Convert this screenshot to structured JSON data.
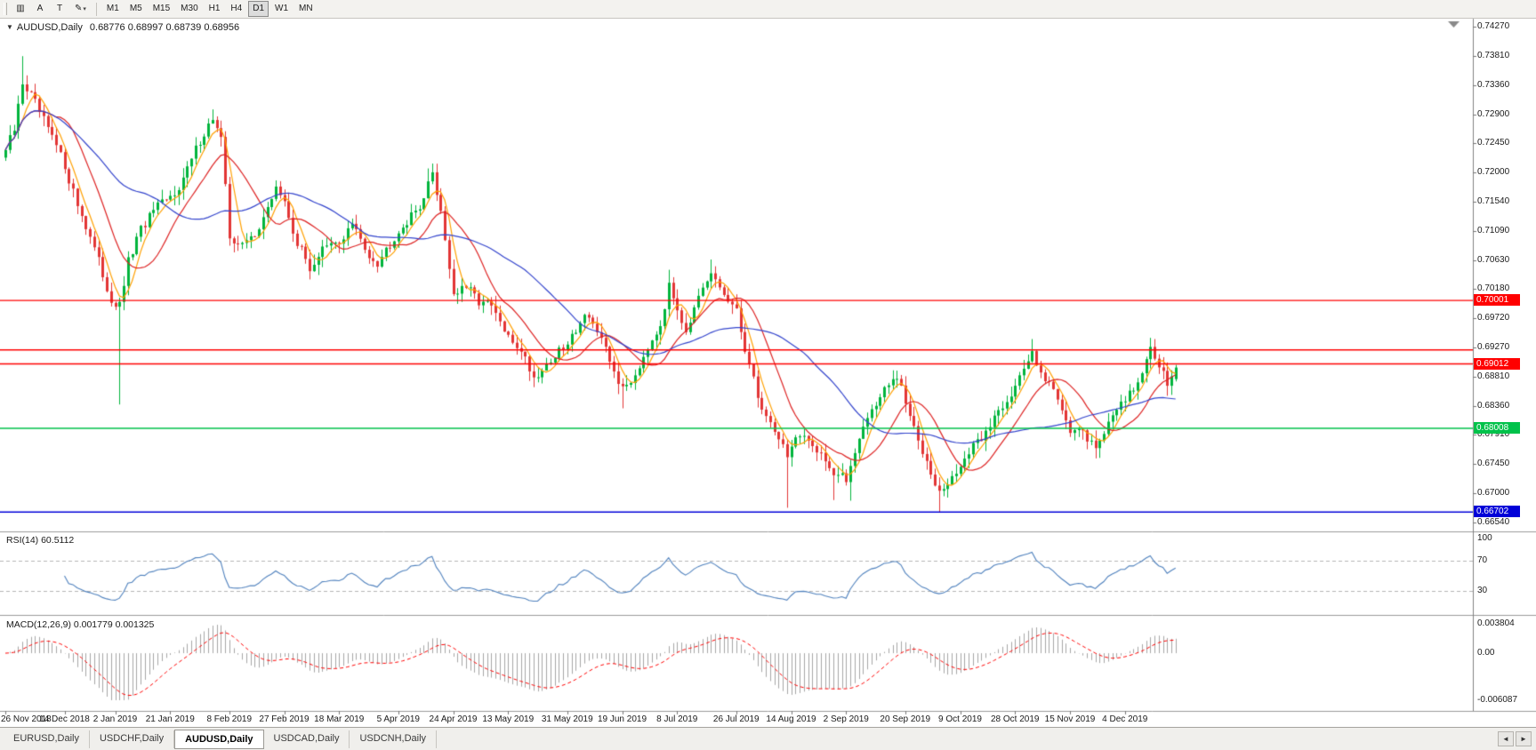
{
  "toolbar": {
    "caret": "▾",
    "buttons": [
      {
        "name": "chart-window-icon-button",
        "glyph": "▥",
        "dropdown": false
      },
      {
        "name": "cursor-tool-button",
        "glyph": "A",
        "dropdown": false
      },
      {
        "name": "text-tool-button",
        "glyph": "T",
        "dropdown": false
      },
      {
        "name": "drawing-tools-button",
        "glyph": "✎",
        "dropdown": true
      }
    ],
    "timeframes": [
      {
        "label": "M1",
        "active": false
      },
      {
        "label": "M5",
        "active": false
      },
      {
        "label": "M15",
        "active": false
      },
      {
        "label": "M30",
        "active": false
      },
      {
        "label": "H1",
        "active": false
      },
      {
        "label": "H4",
        "active": false
      },
      {
        "label": "D1",
        "active": true
      },
      {
        "label": "W1",
        "active": false
      },
      {
        "label": "MN",
        "active": false
      }
    ]
  },
  "header": {
    "collapse_icon": "▼",
    "title": "AUDUSD,Daily",
    "ohlc": "0.68776 0.68997 0.68739 0.68956"
  },
  "panes": {
    "rsi": {
      "label": "RSI(14) 60.5112",
      "period": 14,
      "current": 60.5112,
      "line_color": "#4f81bd",
      "levels": [
        {
          "value": 100,
          "label": "100",
          "dashed": false
        },
        {
          "value": 70,
          "label": "70",
          "dashed": true
        },
        {
          "value": 30,
          "label": "30",
          "dashed": true
        }
      ]
    },
    "macd": {
      "label": "MACD(12,26,9) 0.001779 0.001325",
      "fast": 12,
      "slow": 26,
      "signal": 9,
      "current_macd": 0.001779,
      "current_signal": 0.001325,
      "axis_labels": [
        {
          "value": 0.003804,
          "label": "0.003804"
        },
        {
          "value": 0,
          "label": "0.00"
        },
        {
          "value": -0.006087,
          "label": "-0.006087"
        }
      ]
    }
  },
  "chart_data": {
    "type": "candlestick",
    "symbol": "AUDUSD",
    "timeframe": "Daily",
    "colors": {
      "up": "#00b43c",
      "down": "#e23535",
      "ma_fast": "#ffa000",
      "ma_mid": "#dd2222",
      "ma_slow": "#3344cc",
      "rsi": "#4f81bd",
      "macd_hist": "#a6a6a6",
      "macd_signal": "#ff0000"
    },
    "y_axis": {
      "min": 0.6654,
      "max": 0.7427,
      "ticks": [
        "0.74270",
        "0.73810",
        "0.73360",
        "0.72900",
        "0.72450",
        "0.72000",
        "0.71540",
        "0.71090",
        "0.70630",
        "0.70180",
        "0.69720",
        "0.69270",
        "0.68810",
        "0.68360",
        "0.67910",
        "0.67450",
        "0.67000",
        "0.66540"
      ]
    },
    "x_axis": {
      "ticks": [
        {
          "text": "26 Nov 2018",
          "index": 0
        },
        {
          "text": "14 Dec 2018",
          "index": 14
        },
        {
          "text": "2 Jan 2019",
          "index": 26
        },
        {
          "text": "21 Jan 2019",
          "index": 39
        },
        {
          "text": "8 Feb 2019",
          "index": 53
        },
        {
          "text": "27 Feb 2019",
          "index": 66
        },
        {
          "text": "18 Mar 2019",
          "index": 79
        },
        {
          "text": "5 Apr 2019",
          "index": 93
        },
        {
          "text": "24 Apr 2019",
          "index": 106
        },
        {
          "text": "13 May 2019",
          "index": 119
        },
        {
          "text": "31 May 2019",
          "index": 133
        },
        {
          "text": "19 Jun 2019",
          "index": 146
        },
        {
          "text": "8 Jul 2019",
          "index": 159
        },
        {
          "text": "26 Jul 2019",
          "index": 173
        },
        {
          "text": "14 Aug 2019",
          "index": 186
        },
        {
          "text": "2 Sep 2019",
          "index": 199
        },
        {
          "text": "20 Sep 2019",
          "index": 213
        },
        {
          "text": "9 Oct 2019",
          "index": 226
        },
        {
          "text": "28 Oct 2019",
          "index": 239
        },
        {
          "text": "15 Nov 2019",
          "index": 252
        },
        {
          "text": "4 Dec 2019",
          "index": 265
        }
      ]
    },
    "hlines": [
      {
        "price": 0.70001,
        "label": "0.70001",
        "color": "#ff0000"
      },
      {
        "price": 0.6923,
        "label": "",
        "color": "#ff0000"
      },
      {
        "price": 0.69012,
        "label": "0.69012",
        "color": "#ff0000"
      },
      {
        "price": 0.68008,
        "label": "0.68008",
        "color": "#00c24a"
      },
      {
        "price": 0.66702,
        "label": "0.66702",
        "color": "#0000d8"
      }
    ],
    "moving_averages": [
      {
        "period": 5,
        "color": "#ffa000"
      },
      {
        "period": 13,
        "color": "#dd2222"
      },
      {
        "period": 34,
        "color": "#3344cc"
      }
    ],
    "candles": {
      "count": 278,
      "last_ohlc": {
        "open": 0.68776,
        "high": 0.68997,
        "low": 0.68739,
        "close": 0.68956
      },
      "close_anchors": [
        [
          0,
          0.7235
        ],
        [
          2,
          0.7265
        ],
        [
          4,
          0.734
        ],
        [
          6,
          0.732
        ],
        [
          9,
          0.728
        ],
        [
          12,
          0.724
        ],
        [
          14,
          0.721
        ],
        [
          17,
          0.715
        ],
        [
          20,
          0.71
        ],
        [
          23,
          0.704
        ],
        [
          25,
          0.7
        ],
        [
          27,
          0.699
        ],
        [
          29,
          0.706
        ],
        [
          32,
          0.711
        ],
        [
          35,
          0.714
        ],
        [
          39,
          0.716
        ],
        [
          42,
          0.719
        ],
        [
          46,
          0.725
        ],
        [
          49,
          0.7285
        ],
        [
          51,
          0.725
        ],
        [
          53,
          0.71
        ],
        [
          56,
          0.7085
        ],
        [
          59,
          0.7105
        ],
        [
          62,
          0.714
        ],
        [
          64,
          0.718
        ],
        [
          66,
          0.715
        ],
        [
          69,
          0.709
        ],
        [
          72,
          0.705
        ],
        [
          75,
          0.708
        ],
        [
          79,
          0.709
        ],
        [
          82,
          0.712
        ],
        [
          85,
          0.708
        ],
        [
          88,
          0.706
        ],
        [
          91,
          0.709
        ],
        [
          93,
          0.711
        ],
        [
          96,
          0.713
        ],
        [
          99,
          0.716
        ],
        [
          101,
          0.72
        ],
        [
          103,
          0.714
        ],
        [
          106,
          0.701
        ],
        [
          109,
          0.702
        ],
        [
          112,
          0.7
        ],
        [
          115,
          0.699
        ],
        [
          119,
          0.694
        ],
        [
          122,
          0.6925
        ],
        [
          125,
          0.688
        ],
        [
          128,
          0.69
        ],
        [
          131,
          0.692
        ],
        [
          133,
          0.693
        ],
        [
          136,
          0.697
        ],
        [
          138,
          0.698
        ],
        [
          142,
          0.692
        ],
        [
          146,
          0.686
        ],
        [
          149,
          0.6885
        ],
        [
          152,
          0.693
        ],
        [
          155,
          0.6965
        ],
        [
          157,
          0.702
        ],
        [
          159,
          0.699
        ],
        [
          161,
          0.6955
        ],
        [
          164,
          0.7
        ],
        [
          167,
          0.704
        ],
        [
          170,
          0.701
        ],
        [
          173,
          0.698
        ],
        [
          176,
          0.69
        ],
        [
          179,
          0.683
        ],
        [
          182,
          0.68
        ],
        [
          185,
          0.676
        ],
        [
          187,
          0.6785
        ],
        [
          190,
          0.678
        ],
        [
          193,
          0.6765
        ],
        [
          196,
          0.673
        ],
        [
          199,
          0.672
        ],
        [
          202,
          0.679
        ],
        [
          205,
          0.683
        ],
        [
          208,
          0.686
        ],
        [
          211,
          0.688
        ],
        [
          213,
          0.684
        ],
        [
          216,
          0.678
        ],
        [
          218,
          0.6755
        ],
        [
          221,
          0.67
        ],
        [
          224,
          0.672
        ],
        [
          226,
          0.6745
        ],
        [
          229,
          0.677
        ],
        [
          232,
          0.6795
        ],
        [
          235,
          0.683
        ],
        [
          238,
          0.6855
        ],
        [
          241,
          0.689
        ],
        [
          243,
          0.692
        ],
        [
          246,
          0.688
        ],
        [
          249,
          0.685
        ],
        [
          252,
          0.68
        ],
        [
          255,
          0.679
        ],
        [
          258,
          0.6775
        ],
        [
          261,
          0.6805
        ],
        [
          264,
          0.6845
        ],
        [
          266,
          0.6855
        ],
        [
          269,
          0.688
        ],
        [
          271,
          0.693
        ],
        [
          273,
          0.69
        ],
        [
          275,
          0.6875
        ],
        [
          277,
          0.68956
        ]
      ],
      "wick_lows": [
        [
          27,
          0.6838
        ],
        [
          125,
          0.6865
        ],
        [
          146,
          0.6832
        ],
        [
          185,
          0.6677
        ],
        [
          196,
          0.6689
        ],
        [
          200,
          0.6688
        ],
        [
          221,
          0.667
        ],
        [
          258,
          0.6754
        ]
      ],
      "wick_highs": [
        [
          4,
          0.7381
        ],
        [
          49,
          0.7298
        ],
        [
          100,
          0.7206
        ],
        [
          157,
          0.7048
        ],
        [
          167,
          0.7064
        ],
        [
          243,
          0.694
        ],
        [
          271,
          0.6941
        ]
      ]
    }
  },
  "tabs": {
    "scroll_left": "◄",
    "scroll_right": "►",
    "items": [
      {
        "label": "EURUSD,Daily",
        "active": false
      },
      {
        "label": "USDCHF,Daily",
        "active": false
      },
      {
        "label": "AUDUSD,Daily",
        "active": true
      },
      {
        "label": "USDCAD,Daily",
        "active": false
      },
      {
        "label": "USDCNH,Daily",
        "active": false
      }
    ]
  }
}
